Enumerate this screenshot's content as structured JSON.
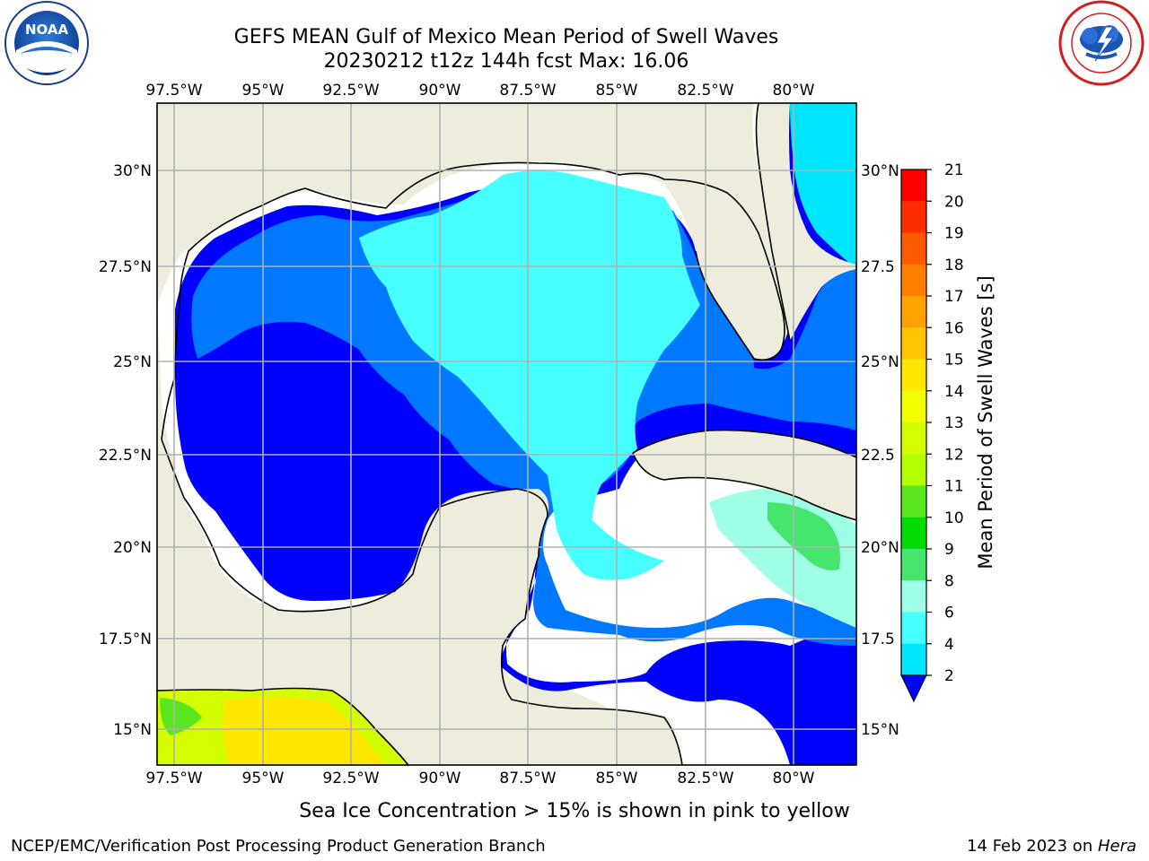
{
  "title": {
    "line1": "GEFS MEAN Gulf of Mexico Mean Period of Swell Waves",
    "line2": "20230212 t12z 144h fcst   Max: 16.06"
  },
  "logos": {
    "left": {
      "name": "noaa-logo",
      "text": "NOAA",
      "ring_text": "NATIONAL OCEANIC AND ATMOSPHERIC ADMINISTRATION · U.S. DEPARTMENT OF COMMERCE"
    },
    "right": {
      "name": "nws-logo",
      "ring_text": "NATIONAL WEATHER SERVICE"
    }
  },
  "map": {
    "lon_ticks": [
      "97.5°W",
      "95°W",
      "92.5°W",
      "90°W",
      "87.5°W",
      "85°W",
      "82.5°W",
      "80°W"
    ],
    "lat_ticks_left": [
      "30°N",
      "27.5°N",
      "25°N",
      "22.5°N",
      "20°N",
      "17.5°N",
      "15°N"
    ],
    "lat_ticks_right": [
      "30°N",
      "27.5",
      "25°N",
      "22.5",
      "20°N",
      "17.5",
      "15°N"
    ],
    "land_color": "#eeecdc",
    "grid_color": "#b0b0b0"
  },
  "colorbar": {
    "title": "Mean Period of Swell Waves [s]",
    "ticks": [
      "21",
      "20",
      "19",
      "18",
      "17",
      "16",
      "15",
      "14",
      "13",
      "12",
      "11",
      "10",
      "9",
      "8",
      "6",
      "4",
      "2"
    ],
    "colors": [
      "#ff0000",
      "#ff2e00",
      "#ff5a00",
      "#ff7e00",
      "#ffa200",
      "#ffc400",
      "#ffe800",
      "#f2ff00",
      "#d4ff00",
      "#b2ff00",
      "#5ae61e",
      "#00dc00",
      "#46e66e",
      "#9effe6",
      "#46ffff",
      "#00e6ff",
      "#0078ff"
    ],
    "extend_color": "#0000ff"
  },
  "note": "Sea Ice Concentration > 15% is shown in pink to yellow",
  "footer": {
    "left": "NCEP/EMC/Verification Post Processing Product Generation Branch",
    "right_date": "14 Feb 2023 on ",
    "right_host": "Hera"
  }
}
